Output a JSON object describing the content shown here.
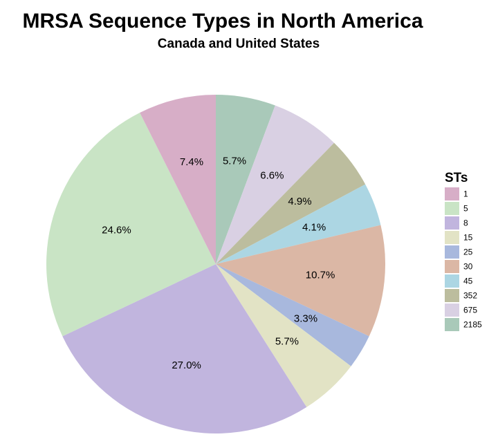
{
  "chart_data": {
    "type": "pie",
    "title": "MRSA Sequence Types in North America",
    "subtitle": "Canada and United States",
    "legend_title": "STs",
    "legend_placement": "right",
    "start_angle_deg": 0,
    "direction": "clockwise",
    "slices": [
      {
        "label": "2185",
        "value": 5.7,
        "label_text": "5.7%",
        "color": "#a9c9b9"
      },
      {
        "label": "675",
        "value": 6.6,
        "label_text": "6.6%",
        "color": "#d9d0e3"
      },
      {
        "label": "352",
        "value": 4.9,
        "label_text": "4.9%",
        "color": "#bcbd9e"
      },
      {
        "label": "45",
        "value": 4.1,
        "label_text": "4.1%",
        "color": "#acd6e3"
      },
      {
        "label": "30",
        "value": 10.7,
        "label_text": "10.7%",
        "color": "#dbb7a5"
      },
      {
        "label": "25",
        "value": 3.3,
        "label_text": "3.3%",
        "color": "#a8b8dd"
      },
      {
        "label": "15",
        "value": 5.7,
        "label_text": "5.7%",
        "color": "#e2e3c5"
      },
      {
        "label": "8",
        "value": 27.0,
        "label_text": "27.0%",
        "color": "#c1b5de"
      },
      {
        "label": "5",
        "value": 24.6,
        "label_text": "24.6%",
        "color": "#c9e4c5"
      },
      {
        "label": "1",
        "value": 7.4,
        "label_text": "7.4%",
        "color": "#d7aec7"
      }
    ],
    "legend": [
      {
        "label": "1",
        "color": "#d7aec7"
      },
      {
        "label": "5",
        "color": "#c9e4c5"
      },
      {
        "label": "8",
        "color": "#c1b5de"
      },
      {
        "label": "15",
        "color": "#e2e3c5"
      },
      {
        "label": "25",
        "color": "#a8b8dd"
      },
      {
        "label": "30",
        "color": "#dbb7a5"
      },
      {
        "label": "45",
        "color": "#acd6e3"
      },
      {
        "label": "352",
        "color": "#bcbd9e"
      },
      {
        "label": "675",
        "color": "#d9d0e3"
      },
      {
        "label": "2185",
        "color": "#a9c9b9"
      }
    ]
  }
}
